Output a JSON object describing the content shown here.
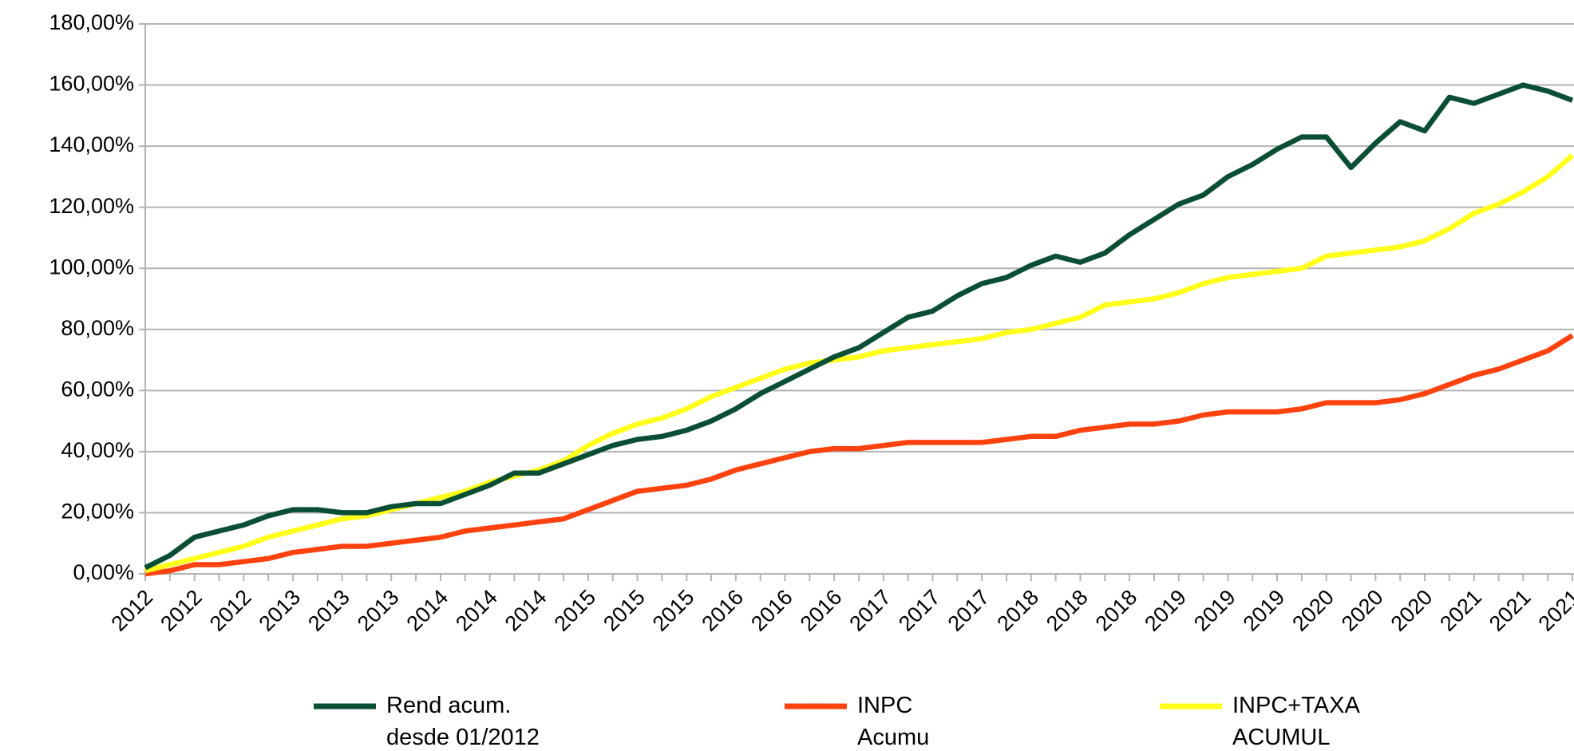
{
  "chart_data": {
    "type": "line",
    "categories": [
      "2012",
      null,
      "2012",
      null,
      "2012",
      null,
      "2013",
      null,
      "2013",
      null,
      "2013",
      null,
      "2014",
      null,
      "2014",
      null,
      "2014",
      null,
      "2015",
      null,
      "2015",
      null,
      "2015",
      null,
      "2016",
      null,
      "2016",
      null,
      "2016",
      null,
      "2017",
      null,
      "2017",
      null,
      "2017",
      null,
      "2018",
      null,
      "2018",
      null,
      "2018",
      null,
      "2019",
      null,
      "2019",
      null,
      "2019",
      null,
      "2020",
      null,
      "2020",
      null,
      "2020",
      null,
      "2021",
      null,
      "2021",
      null,
      "2021"
    ],
    "series": [
      {
        "name": "Rend acum.\ndesde 01/2012",
        "color": "#0a4f33",
        "values": [
          2,
          6,
          12,
          14,
          16,
          19,
          21,
          21,
          20,
          20,
          22,
          23,
          23,
          26,
          29,
          33,
          33,
          36,
          39,
          42,
          44,
          45,
          47,
          50,
          54,
          59,
          63,
          67,
          71,
          74,
          79,
          84,
          86,
          91,
          95,
          97,
          101,
          104,
          102,
          105,
          111,
          116,
          121,
          124,
          130,
          134,
          139,
          143,
          143,
          133,
          141,
          148,
          145,
          156,
          154,
          157,
          160,
          158,
          155
        ]
      },
      {
        "name": "INPC\nAcumu",
        "color": "#ff420e",
        "values": [
          0,
          1,
          3,
          3,
          4,
          5,
          7,
          8,
          9,
          9,
          10,
          11,
          12,
          14,
          15,
          16,
          17,
          18,
          21,
          24,
          27,
          28,
          29,
          31,
          34,
          36,
          38,
          40,
          41,
          41,
          42,
          43,
          43,
          43,
          43,
          44,
          45,
          45,
          47,
          48,
          49,
          49,
          50,
          52,
          53,
          53,
          53,
          54,
          56,
          56,
          56,
          57,
          59,
          62,
          65,
          67,
          70,
          73,
          78
        ]
      },
      {
        "name": "INPC+TAXA\nACUMUL",
        "color": "#ffff1a",
        "values": [
          1,
          3,
          5,
          7,
          9,
          12,
          14,
          16,
          18,
          19,
          21,
          23,
          25,
          27,
          30,
          32,
          34,
          37,
          42,
          46,
          49,
          51,
          54,
          58,
          61,
          64,
          67,
          69,
          70,
          71,
          73,
          74,
          75,
          76,
          77,
          79,
          80,
          82,
          84,
          88,
          89,
          90,
          92,
          95,
          97,
          98,
          99,
          100,
          104,
          105,
          106,
          107,
          109,
          113,
          118,
          121,
          125,
          130,
          137
        ]
      }
    ],
    "ylim": [
      0,
      180
    ],
    "yticks": [
      {
        "value": 0,
        "label": "0,00%"
      },
      {
        "value": 20,
        "label": "20,00%"
      },
      {
        "value": 40,
        "label": "40,00%"
      },
      {
        "value": 60,
        "label": "60,00%"
      },
      {
        "value": 80,
        "label": "80,00%"
      },
      {
        "value": 100,
        "label": "100,00%"
      },
      {
        "value": 120,
        "label": "120,00%"
      },
      {
        "value": 140,
        "label": "140,00%"
      },
      {
        "value": 160,
        "label": "160,00%"
      },
      {
        "value": 180,
        "label": "180,00%"
      }
    ],
    "grid": true,
    "legend": "bottom"
  }
}
